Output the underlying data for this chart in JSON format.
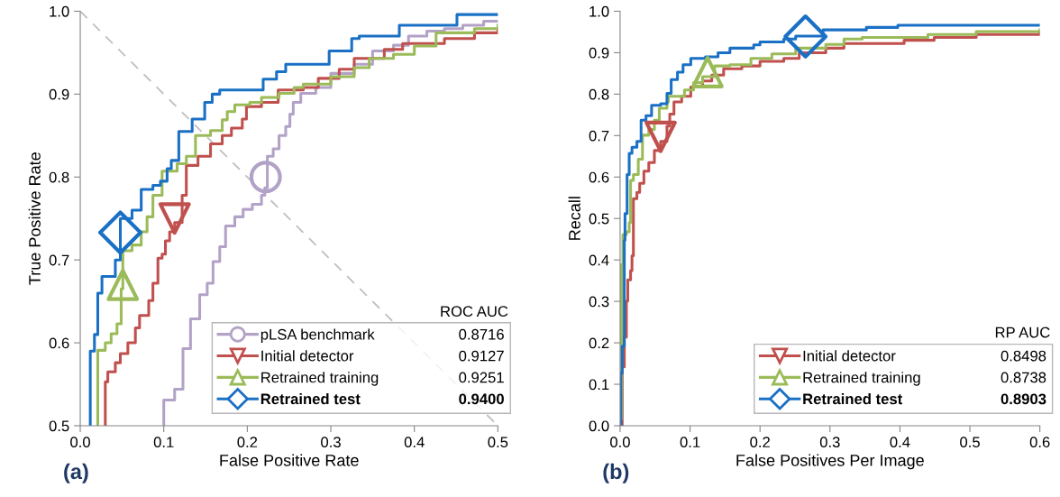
{
  "chart_data": [
    {
      "type": "step",
      "xlabel": "False Positive Rate",
      "ylabel": "True Positive Rate",
      "legend_title": "ROC AUC",
      "legend": "bottom right",
      "grid": false,
      "xlim": [
        0,
        0.5
      ],
      "ylim": [
        0.5,
        1.0
      ],
      "xticks": [
        {
          "value": 0,
          "label": "0.0"
        },
        {
          "value": 0.1,
          "label": "0.1"
        },
        {
          "value": 0.2,
          "label": "0.2"
        },
        {
          "value": 0.3,
          "label": "0.3"
        },
        {
          "value": 0.4,
          "label": "0.4"
        },
        {
          "value": 0.5,
          "label": "0.5"
        }
      ],
      "yticks": [
        {
          "value": 0.5,
          "label": "0.5"
        },
        {
          "value": 0.6,
          "label": "0.6"
        },
        {
          "value": 0.7,
          "label": "0.7"
        },
        {
          "value": 0.8,
          "label": "0.8"
        },
        {
          "value": 0.9,
          "label": "0.9"
        },
        {
          "value": 1.0,
          "label": "1.0"
        }
      ],
      "annotations": [
        "(a)",
        "0.8716",
        "0.9127",
        "0.9251",
        "0.9400"
      ],
      "series": [
        {
          "type": "line",
          "color": "#bfbfbf",
          "line_style": "dashed",
          "x": [
            0,
            0.5
          ],
          "values": [
            1.0,
            0.5
          ]
        },
        {
          "name": "pLSA benchmark",
          "color": "#b3a2c7",
          "x": [
            0.1,
            0.1,
            0.113,
            0.123,
            0.132,
            0.143,
            0.152,
            0.159,
            0.167,
            0.174,
            0.185,
            0.195,
            0.206,
            0.217,
            0.221,
            0.224,
            0.231,
            0.238,
            0.246,
            0.251,
            0.255,
            0.264,
            0.282,
            0.3,
            0.328,
            0.35,
            0.375,
            0.393,
            0.415,
            0.436,
            0.458,
            0.483,
            0.5
          ],
          "values": [
            0.5,
            0.531,
            0.544,
            0.593,
            0.629,
            0.658,
            0.672,
            0.698,
            0.716,
            0.741,
            0.752,
            0.761,
            0.767,
            0.778,
            0.787,
            0.825,
            0.834,
            0.85,
            0.861,
            0.876,
            0.89,
            0.901,
            0.908,
            0.925,
            0.936,
            0.952,
            0.959,
            0.97,
            0.976,
            0.979,
            0.983,
            0.988,
            0.988
          ]
        },
        {
          "name": "Initial detector",
          "color": "#c0504d",
          "x": [
            0.03,
            0.03,
            0.033,
            0.042,
            0.048,
            0.057,
            0.066,
            0.071,
            0.082,
            0.087,
            0.093,
            0.098,
            0.102,
            0.107,
            0.113,
            0.122,
            0.127,
            0.141,
            0.156,
            0.17,
            0.181,
            0.194,
            0.199,
            0.217,
            0.237,
            0.267,
            0.285,
            0.31,
            0.328,
            0.364,
            0.386,
            0.436,
            0.472,
            0.5
          ],
          "values": [
            0.5,
            0.553,
            0.565,
            0.576,
            0.587,
            0.6,
            0.618,
            0.633,
            0.651,
            0.672,
            0.702,
            0.707,
            0.723,
            0.734,
            0.745,
            0.778,
            0.814,
            0.825,
            0.84,
            0.85,
            0.859,
            0.87,
            0.885,
            0.89,
            0.905,
            0.908,
            0.919,
            0.93,
            0.943,
            0.954,
            0.961,
            0.967,
            0.974,
            0.979
          ]
        },
        {
          "name": "Retrained training",
          "color": "#9bbb59",
          "x": [
            0.021,
            0.021,
            0.03,
            0.037,
            0.044,
            0.049,
            0.051,
            0.062,
            0.073,
            0.08,
            0.087,
            0.098,
            0.116,
            0.127,
            0.138,
            0.156,
            0.17,
            0.176,
            0.185,
            0.203,
            0.217,
            0.238,
            0.256,
            0.267,
            0.3,
            0.328,
            0.346,
            0.375,
            0.4,
            0.426,
            0.472,
            0.5
          ],
          "values": [
            0.5,
            0.591,
            0.6,
            0.611,
            0.623,
            0.665,
            0.711,
            0.718,
            0.734,
            0.752,
            0.778,
            0.807,
            0.816,
            0.825,
            0.85,
            0.856,
            0.869,
            0.879,
            0.887,
            0.89,
            0.896,
            0.901,
            0.908,
            0.912,
            0.921,
            0.932,
            0.943,
            0.948,
            0.958,
            0.974,
            0.979,
            0.983
          ]
        },
        {
          "name": "Retrained test",
          "color": "#1a70c5",
          "x": [
            0.012,
            0.012,
            0.017,
            0.021,
            0.026,
            0.042,
            0.048,
            0.062,
            0.073,
            0.087,
            0.096,
            0.104,
            0.109,
            0.118,
            0.134,
            0.149,
            0.158,
            0.167,
            0.219,
            0.235,
            0.246,
            0.298,
            0.325,
            0.334,
            0.382,
            0.451,
            0.5
          ],
          "values": [
            0.5,
            0.59,
            0.61,
            0.66,
            0.68,
            0.7,
            0.75,
            0.76,
            0.785,
            0.79,
            0.795,
            0.81,
            0.82,
            0.855,
            0.87,
            0.89,
            0.9,
            0.905,
            0.918,
            0.927,
            0.936,
            0.952,
            0.967,
            0.97,
            0.983,
            0.996,
            0.996
          ]
        },
        {
          "type": "scatter",
          "marker": "circle",
          "color": "#b3a2c7",
          "x": [
            0.222
          ],
          "values": [
            0.8
          ]
        },
        {
          "type": "scatter",
          "marker": "triangle_down",
          "color": "#c0504d",
          "x": [
            0.113
          ],
          "values": [
            0.75
          ]
        },
        {
          "type": "scatter",
          "marker": "triangle",
          "color": "#9bbb59",
          "x": [
            0.051
          ],
          "values": [
            0.67
          ]
        },
        {
          "type": "scatter",
          "marker": "diamond",
          "color": "#1a70c5",
          "x": [
            0.048
          ],
          "values": [
            0.733
          ]
        }
      ]
    },
    {
      "type": "step",
      "xlabel": "False Positives Per Image",
      "ylabel": "Recall",
      "legend_title": "RP AUC",
      "legend": "bottom right",
      "grid": false,
      "xlim": [
        0,
        0.6
      ],
      "ylim": [
        0,
        1.0
      ],
      "xticks": [
        {
          "value": 0,
          "label": "0.0"
        },
        {
          "value": 0.1,
          "label": "0.1"
        },
        {
          "value": 0.2,
          "label": "0.2"
        },
        {
          "value": 0.3,
          "label": "0.3"
        },
        {
          "value": 0.4,
          "label": "0.4"
        },
        {
          "value": 0.5,
          "label": "0.5"
        },
        {
          "value": 0.6,
          "label": "0.6"
        }
      ],
      "yticks": [
        {
          "value": 0,
          "label": "0.0"
        },
        {
          "value": 0.1,
          "label": "0.1"
        },
        {
          "value": 0.2,
          "label": "0.2"
        },
        {
          "value": 0.3,
          "label": "0.3"
        },
        {
          "value": 0.4,
          "label": "0.4"
        },
        {
          "value": 0.5,
          "label": "0.5"
        },
        {
          "value": 0.6,
          "label": "0.6"
        },
        {
          "value": 0.7,
          "label": "0.7"
        },
        {
          "value": 0.8,
          "label": "0.8"
        },
        {
          "value": 0.9,
          "label": "0.9"
        },
        {
          "value": 1.0,
          "label": "1.0"
        }
      ],
      "annotations": [
        "(b)",
        "0.8498",
        "0.8738",
        "0.8903"
      ],
      "series": [
        {
          "name": "Initial detector",
          "color": "#c0504d",
          "x": [
            0.002,
            0.003,
            0.006,
            0.009,
            0.011,
            0.015,
            0.017,
            0.019,
            0.024,
            0.028,
            0.034,
            0.041,
            0.049,
            0.058,
            0.067,
            0.071,
            0.077,
            0.088,
            0.101,
            0.118,
            0.131,
            0.148,
            0.174,
            0.2,
            0.234,
            0.256,
            0.294,
            0.32,
            0.406,
            0.449,
            0.509,
            0.6
          ],
          "values": [
            0.0,
            0.142,
            0.214,
            0.301,
            0.352,
            0.374,
            0.41,
            0.548,
            0.563,
            0.585,
            0.614,
            0.635,
            0.664,
            0.686,
            0.723,
            0.752,
            0.781,
            0.795,
            0.817,
            0.832,
            0.846,
            0.861,
            0.868,
            0.879,
            0.886,
            0.9,
            0.911,
            0.922,
            0.93,
            0.937,
            0.944,
            0.949
          ]
        },
        {
          "name": "Retrained training",
          "color": "#9bbb59",
          "x": [
            0.002,
            0.002,
            0.004,
            0.009,
            0.013,
            0.015,
            0.019,
            0.026,
            0.032,
            0.041,
            0.049,
            0.056,
            0.067,
            0.069,
            0.092,
            0.105,
            0.118,
            0.135,
            0.157,
            0.187,
            0.217,
            0.251,
            0.294,
            0.32,
            0.346,
            0.44,
            0.509,
            0.6
          ],
          "values": [
            0.018,
            0.389,
            0.461,
            0.468,
            0.49,
            0.592,
            0.606,
            0.643,
            0.701,
            0.715,
            0.737,
            0.766,
            0.781,
            0.795,
            0.81,
            0.828,
            0.842,
            0.868,
            0.871,
            0.886,
            0.897,
            0.911,
            0.92,
            0.933,
            0.937,
            0.944,
            0.951,
            0.955
          ]
        },
        {
          "name": "Retrained test",
          "color": "#1a70c5",
          "x": [
            0.0,
            0.001,
            0.003,
            0.006,
            0.007,
            0.01,
            0.013,
            0.017,
            0.024,
            0.03,
            0.037,
            0.045,
            0.058,
            0.067,
            0.073,
            0.082,
            0.09,
            0.101,
            0.122,
            0.14,
            0.157,
            0.191,
            0.2,
            0.234,
            0.251,
            0.29,
            0.352,
            0.397,
            0.6
          ],
          "values": [
            0.0,
            0.127,
            0.192,
            0.447,
            0.512,
            0.606,
            0.657,
            0.672,
            0.686,
            0.737,
            0.748,
            0.773,
            0.777,
            0.802,
            0.835,
            0.853,
            0.871,
            0.886,
            0.89,
            0.9,
            0.911,
            0.919,
            0.926,
            0.933,
            0.94,
            0.955,
            0.961,
            0.966,
            0.966
          ]
        },
        {
          "type": "scatter",
          "marker": "triangle_down",
          "color": "#c0504d",
          "x": [
            0.058
          ],
          "values": [
            0.697
          ]
        },
        {
          "type": "scatter",
          "marker": "triangle",
          "color": "#9bbb59",
          "x": [
            0.125
          ],
          "values": [
            0.853
          ]
        },
        {
          "type": "scatter",
          "marker": "diamond",
          "color": "#1a70c5",
          "x": [
            0.265
          ],
          "values": [
            0.939
          ]
        }
      ]
    }
  ]
}
